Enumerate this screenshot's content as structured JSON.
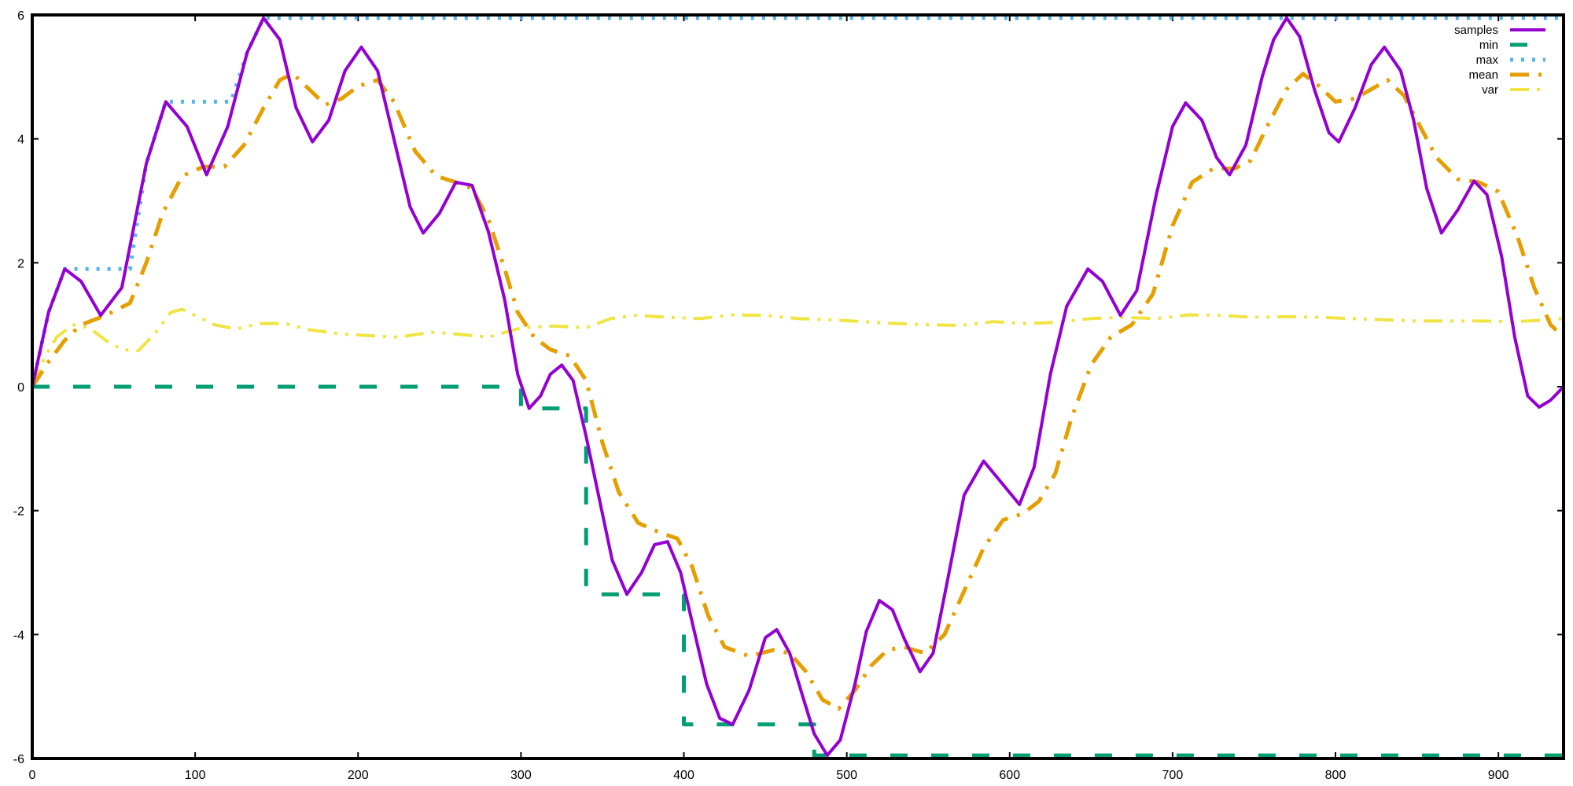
{
  "chart_data": {
    "type": "line",
    "xlim": [
      0,
      940
    ],
    "ylim": [
      -6,
      6
    ],
    "x_ticks": [
      0,
      100,
      200,
      300,
      400,
      500,
      600,
      700,
      800,
      900
    ],
    "y_ticks": [
      -6,
      -4,
      -2,
      0,
      2,
      4,
      6
    ],
    "grid": false,
    "legend_position": "top-right",
    "series": [
      {
        "name": "samples",
        "color": "#9400d3",
        "dash": "solid",
        "points": [
          [
            0,
            0
          ],
          [
            10,
            1.2
          ],
          [
            20,
            1.9
          ],
          [
            30,
            1.7
          ],
          [
            42,
            1.15
          ],
          [
            55,
            1.6
          ],
          [
            70,
            3.6
          ],
          [
            82,
            4.6
          ],
          [
            95,
            4.2
          ],
          [
            107,
            3.42
          ],
          [
            120,
            4.2
          ],
          [
            132,
            5.4
          ],
          [
            142,
            5.95
          ],
          [
            152,
            5.6
          ],
          [
            162,
            4.5
          ],
          [
            172,
            3.95
          ],
          [
            182,
            4.3
          ],
          [
            192,
            5.1
          ],
          [
            202,
            5.48
          ],
          [
            212,
            5.1
          ],
          [
            222,
            4.0
          ],
          [
            232,
            2.9
          ],
          [
            240,
            2.48
          ],
          [
            250,
            2.8
          ],
          [
            260,
            3.3
          ],
          [
            270,
            3.25
          ],
          [
            280,
            2.5
          ],
          [
            290,
            1.4
          ],
          [
            298,
            0.2
          ],
          [
            305,
            -0.35
          ],
          [
            312,
            -0.15
          ],
          [
            318,
            0.2
          ],
          [
            325,
            0.35
          ],
          [
            332,
            0.1
          ],
          [
            340,
            -0.8
          ],
          [
            348,
            -1.8
          ],
          [
            356,
            -2.8
          ],
          [
            365,
            -3.35
          ],
          [
            374,
            -3.0
          ],
          [
            382,
            -2.55
          ],
          [
            390,
            -2.5
          ],
          [
            398,
            -3.0
          ],
          [
            406,
            -3.9
          ],
          [
            414,
            -4.8
          ],
          [
            422,
            -5.35
          ],
          [
            430,
            -5.45
          ],
          [
            440,
            -4.9
          ],
          [
            450,
            -4.05
          ],
          [
            457,
            -3.92
          ],
          [
            465,
            -4.3
          ],
          [
            473,
            -5.0
          ],
          [
            480,
            -5.6
          ],
          [
            488,
            -5.95
          ],
          [
            496,
            -5.7
          ],
          [
            505,
            -4.8
          ],
          [
            512,
            -3.95
          ],
          [
            520,
            -3.45
          ],
          [
            528,
            -3.6
          ],
          [
            535,
            -4.05
          ],
          [
            545,
            -4.6
          ],
          [
            553,
            -4.3
          ],
          [
            562,
            -3.1
          ],
          [
            572,
            -1.75
          ],
          [
            584,
            -1.2
          ],
          [
            595,
            -1.55
          ],
          [
            606,
            -1.9
          ],
          [
            615,
            -1.3
          ],
          [
            625,
            0.2
          ],
          [
            635,
            1.3
          ],
          [
            648,
            1.9
          ],
          [
            657,
            1.7
          ],
          [
            668,
            1.15
          ],
          [
            678,
            1.55
          ],
          [
            690,
            3.1
          ],
          [
            700,
            4.2
          ],
          [
            708,
            4.58
          ],
          [
            718,
            4.3
          ],
          [
            727,
            3.7
          ],
          [
            735,
            3.42
          ],
          [
            745,
            3.9
          ],
          [
            755,
            5.0
          ],
          [
            762,
            5.6
          ],
          [
            770,
            5.95
          ],
          [
            778,
            5.65
          ],
          [
            787,
            4.8
          ],
          [
            796,
            4.1
          ],
          [
            802,
            3.95
          ],
          [
            812,
            4.5
          ],
          [
            822,
            5.2
          ],
          [
            830,
            5.48
          ],
          [
            840,
            5.1
          ],
          [
            848,
            4.3
          ],
          [
            856,
            3.2
          ],
          [
            865,
            2.48
          ],
          [
            875,
            2.85
          ],
          [
            885,
            3.32
          ],
          [
            893,
            3.1
          ],
          [
            902,
            2.1
          ],
          [
            910,
            0.8
          ],
          [
            918,
            -0.15
          ],
          [
            925,
            -0.33
          ],
          [
            932,
            -0.22
          ],
          [
            940,
            0.0
          ]
        ]
      },
      {
        "name": "min",
        "color": "#009e73",
        "dash": "dashed",
        "points": [
          [
            0,
            0
          ],
          [
            300,
            0
          ],
          [
            300,
            -0.35
          ],
          [
            340,
            -0.35
          ],
          [
            340,
            -3.35
          ],
          [
            400,
            -3.35
          ],
          [
            400,
            -5.45
          ],
          [
            480,
            -5.45
          ],
          [
            480,
            -5.95
          ],
          [
            940,
            -5.95
          ]
        ]
      },
      {
        "name": "max",
        "color": "#56b4e9",
        "dash": "dotted",
        "points": [
          [
            0,
            0
          ],
          [
            10,
            1.2
          ],
          [
            20,
            1.9
          ],
          [
            60,
            1.9
          ],
          [
            70,
            3.6
          ],
          [
            82,
            4.6
          ],
          [
            122,
            4.6
          ],
          [
            132,
            5.4
          ],
          [
            142,
            5.95
          ],
          [
            940,
            5.95
          ]
        ]
      },
      {
        "name": "mean",
        "color": "#e69f00",
        "dash": "dashdot",
        "points": [
          [
            0,
            0
          ],
          [
            10,
            0.4
          ],
          [
            20,
            0.75
          ],
          [
            30,
            1.0
          ],
          [
            45,
            1.15
          ],
          [
            60,
            1.35
          ],
          [
            70,
            2.0
          ],
          [
            80,
            2.8
          ],
          [
            92,
            3.4
          ],
          [
            105,
            3.55
          ],
          [
            118,
            3.55
          ],
          [
            130,
            3.9
          ],
          [
            142,
            4.5
          ],
          [
            152,
            4.95
          ],
          [
            160,
            5.05
          ],
          [
            170,
            4.8
          ],
          [
            180,
            4.55
          ],
          [
            190,
            4.65
          ],
          [
            200,
            4.85
          ],
          [
            212,
            4.95
          ],
          [
            222,
            4.6
          ],
          [
            235,
            3.8
          ],
          [
            248,
            3.4
          ],
          [
            260,
            3.3
          ],
          [
            270,
            3.2
          ],
          [
            280,
            2.7
          ],
          [
            290,
            1.9
          ],
          [
            298,
            1.2
          ],
          [
            308,
            0.8
          ],
          [
            318,
            0.6
          ],
          [
            330,
            0.5
          ],
          [
            340,
            0.1
          ],
          [
            350,
            -0.9
          ],
          [
            360,
            -1.7
          ],
          [
            372,
            -2.2
          ],
          [
            385,
            -2.35
          ],
          [
            396,
            -2.45
          ],
          [
            405,
            -2.9
          ],
          [
            415,
            -3.7
          ],
          [
            425,
            -4.2
          ],
          [
            440,
            -4.35
          ],
          [
            455,
            -4.25
          ],
          [
            465,
            -4.3
          ],
          [
            475,
            -4.6
          ],
          [
            485,
            -5.05
          ],
          [
            495,
            -5.2
          ],
          [
            505,
            -4.9
          ],
          [
            515,
            -4.5
          ],
          [
            525,
            -4.25
          ],
          [
            535,
            -4.2
          ],
          [
            548,
            -4.3
          ],
          [
            560,
            -4.0
          ],
          [
            572,
            -3.3
          ],
          [
            584,
            -2.6
          ],
          [
            596,
            -2.15
          ],
          [
            608,
            -2.05
          ],
          [
            618,
            -1.85
          ],
          [
            628,
            -1.4
          ],
          [
            638,
            -0.5
          ],
          [
            650,
            0.35
          ],
          [
            662,
            0.8
          ],
          [
            675,
            1.0
          ],
          [
            688,
            1.5
          ],
          [
            700,
            2.6
          ],
          [
            712,
            3.3
          ],
          [
            725,
            3.52
          ],
          [
            738,
            3.52
          ],
          [
            748,
            3.65
          ],
          [
            758,
            4.2
          ],
          [
            770,
            4.8
          ],
          [
            780,
            5.05
          ],
          [
            790,
            4.85
          ],
          [
            800,
            4.6
          ],
          [
            812,
            4.65
          ],
          [
            822,
            4.8
          ],
          [
            832,
            4.95
          ],
          [
            842,
            4.7
          ],
          [
            852,
            4.2
          ],
          [
            862,
            3.7
          ],
          [
            875,
            3.35
          ],
          [
            888,
            3.3
          ],
          [
            900,
            3.15
          ],
          [
            912,
            2.4
          ],
          [
            922,
            1.6
          ],
          [
            932,
            1.0
          ],
          [
            940,
            0.8
          ]
        ]
      },
      {
        "name": "var",
        "color": "#f0e442",
        "dash": "dashdotdot",
        "points": [
          [
            0,
            0
          ],
          [
            8,
            0.5
          ],
          [
            15,
            0.8
          ],
          [
            25,
            1.0
          ],
          [
            35,
            0.95
          ],
          [
            45,
            0.75
          ],
          [
            55,
            0.6
          ],
          [
            65,
            0.58
          ],
          [
            75,
            0.85
          ],
          [
            85,
            1.2
          ],
          [
            92,
            1.25
          ],
          [
            100,
            1.15
          ],
          [
            112,
            1.0
          ],
          [
            125,
            0.93
          ],
          [
            140,
            1.02
          ],
          [
            155,
            1.02
          ],
          [
            170,
            0.92
          ],
          [
            190,
            0.85
          ],
          [
            210,
            0.82
          ],
          [
            225,
            0.8
          ],
          [
            245,
            0.88
          ],
          [
            260,
            0.85
          ],
          [
            280,
            0.8
          ],
          [
            300,
            0.95
          ],
          [
            320,
            0.98
          ],
          [
            340,
            0.95
          ],
          [
            355,
            1.1
          ],
          [
            370,
            1.15
          ],
          [
            390,
            1.12
          ],
          [
            410,
            1.1
          ],
          [
            430,
            1.16
          ],
          [
            450,
            1.15
          ],
          [
            470,
            1.1
          ],
          [
            490,
            1.08
          ],
          [
            510,
            1.05
          ],
          [
            530,
            1.02
          ],
          [
            550,
            1.0
          ],
          [
            570,
            0.99
          ],
          [
            590,
            1.05
          ],
          [
            610,
            1.02
          ],
          [
            630,
            1.04
          ],
          [
            650,
            1.1
          ],
          [
            670,
            1.12
          ],
          [
            690,
            1.1
          ],
          [
            710,
            1.16
          ],
          [
            730,
            1.15
          ],
          [
            750,
            1.12
          ],
          [
            770,
            1.13
          ],
          [
            790,
            1.12
          ],
          [
            810,
            1.1
          ],
          [
            830,
            1.08
          ],
          [
            850,
            1.06
          ],
          [
            870,
            1.06
          ],
          [
            890,
            1.06
          ],
          [
            910,
            1.05
          ],
          [
            925,
            1.07
          ],
          [
            940,
            1.1
          ]
        ]
      }
    ]
  }
}
